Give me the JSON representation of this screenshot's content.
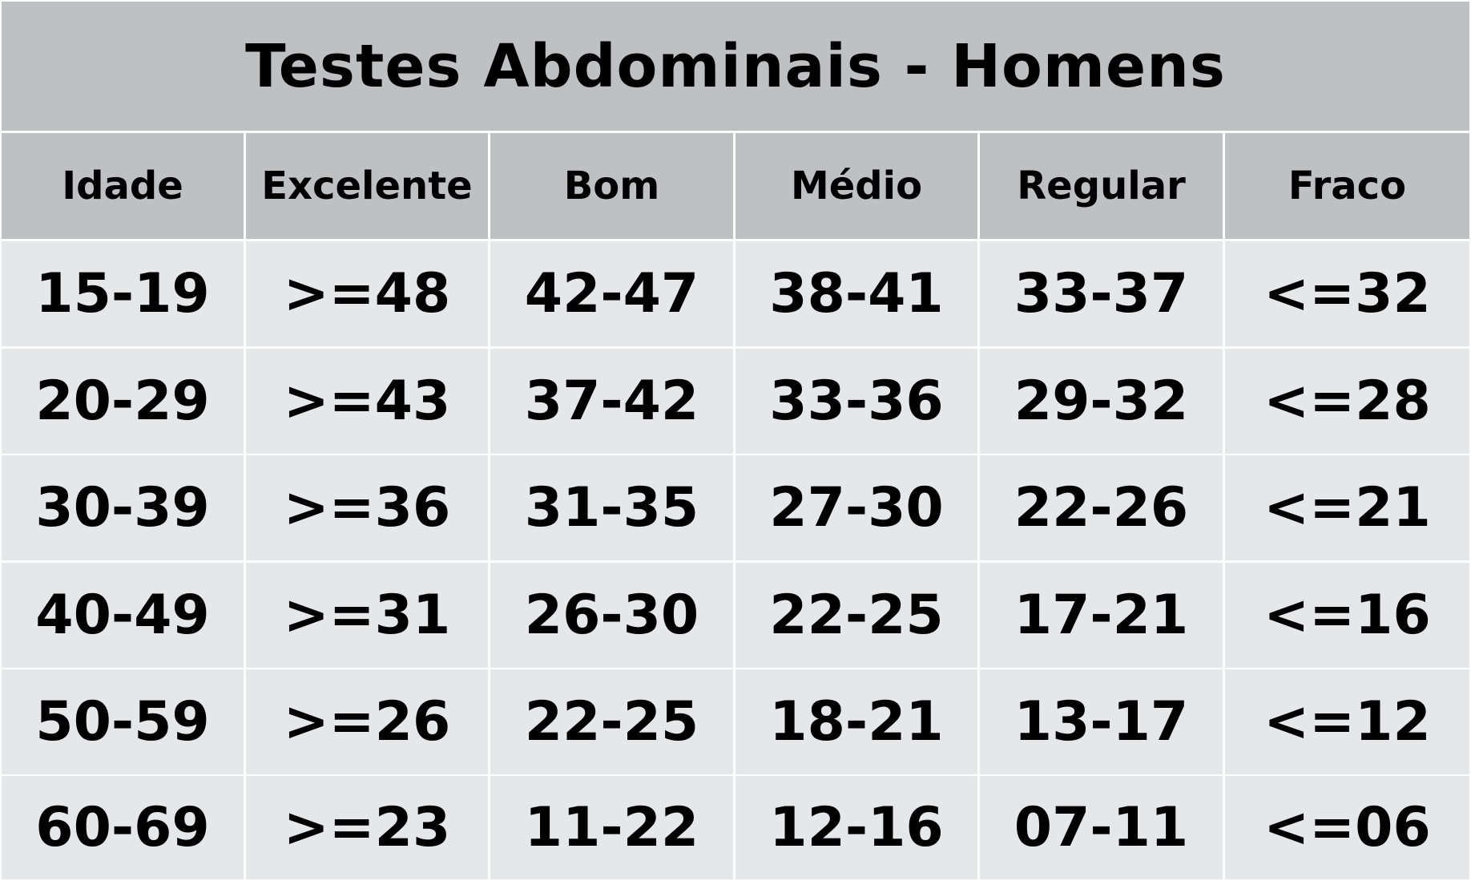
{
  "title": "Testes Abdominais - Homens",
  "columns": [
    "Idade",
    "Excelente",
    "Bom",
    "Médio",
    "Regular",
    "Fraco"
  ],
  "rows": [
    [
      "15-19",
      ">=48",
      "42-47",
      "38-41",
      "33-37",
      "<=32"
    ],
    [
      "20-29",
      ">=43",
      "37-42",
      "33-36",
      "29-32",
      "<=28"
    ],
    [
      "30-39",
      ">=36",
      "31-35",
      "27-30",
      "22-26",
      "<=21"
    ],
    [
      "40-49",
      ">=31",
      "26-30",
      "22-25",
      "17-21",
      "<=16"
    ],
    [
      "50-59",
      ">=26",
      "22-25",
      "18-21",
      "13-17",
      "<=12"
    ],
    [
      "60-69",
      ">=23",
      "11-22",
      "12-16",
      "07-11",
      "<=06"
    ]
  ],
  "colors": {
    "header_background": "#bfc0c2",
    "cell_background": "#e6e7e8",
    "grid_lines": "#ffffff",
    "text": "#000000"
  }
}
